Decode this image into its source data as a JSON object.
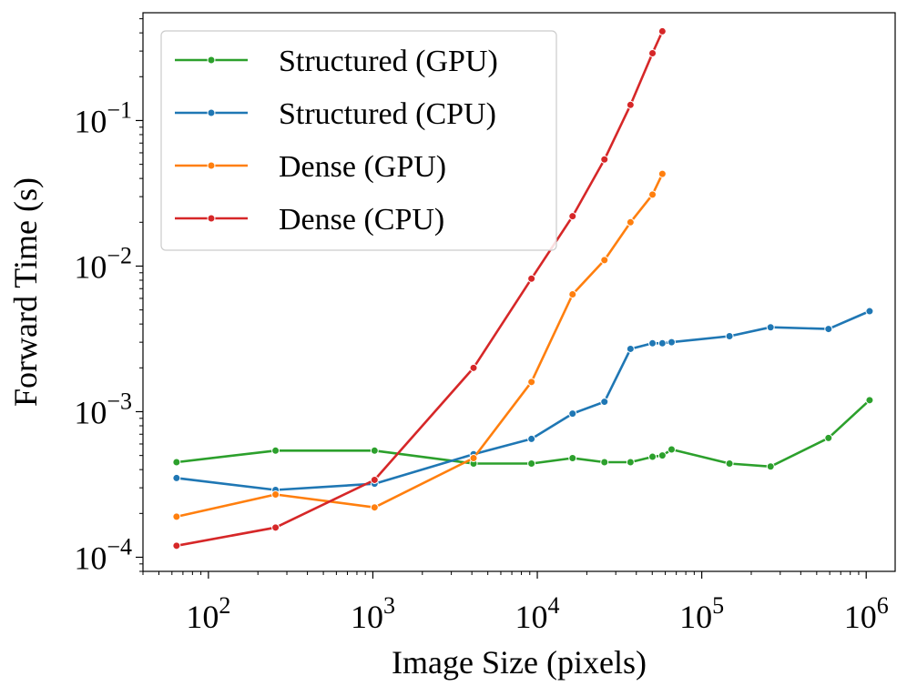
{
  "chart_data": {
    "type": "line",
    "xscale": "log",
    "yscale": "log",
    "xlim": [
      40,
      1500000
    ],
    "ylim": [
      8e-05,
      0.55
    ],
    "xlabel": "Image Size (pixels)",
    "ylabel": "Forward Time (s)",
    "x_ticks": [
      {
        "value": 100,
        "base": "10",
        "exp": "2"
      },
      {
        "value": 1000,
        "base": "10",
        "exp": "3"
      },
      {
        "value": 10000,
        "base": "10",
        "exp": "4"
      },
      {
        "value": 100000,
        "base": "10",
        "exp": "5"
      },
      {
        "value": 1000000,
        "base": "10",
        "exp": "6"
      }
    ],
    "y_ticks": [
      {
        "value": 0.0001,
        "base": "10",
        "exp": "−4"
      },
      {
        "value": 0.001,
        "base": "10",
        "exp": "−3"
      },
      {
        "value": 0.01,
        "base": "10",
        "exp": "−2"
      },
      {
        "value": 0.1,
        "base": "10",
        "exp": "−1"
      }
    ],
    "grid": false,
    "legend_position": "top-left",
    "series": [
      {
        "name": "Structured (GPU)",
        "color": "#2ca02c",
        "x": [
          64,
          256,
          1024,
          4096,
          9216,
          16384,
          25600,
          36864,
          50176,
          57600,
          65536,
          147456,
          262144,
          589824,
          1048576
        ],
        "y": [
          0.00045,
          0.00054,
          0.00054,
          0.00044,
          0.00044,
          0.00048,
          0.00045,
          0.00045,
          0.00049,
          0.0005,
          0.00055,
          0.00044,
          0.00042,
          0.00066,
          0.0012
        ]
      },
      {
        "name": "Structured (CPU)",
        "color": "#1f77b4",
        "x": [
          64,
          256,
          1024,
          4096,
          9216,
          16384,
          25600,
          36864,
          50176,
          57600,
          65536,
          147456,
          262144,
          589824,
          1048576
        ],
        "y": [
          0.00035,
          0.00029,
          0.00032,
          0.00051,
          0.00065,
          0.00097,
          0.00117,
          0.0027,
          0.00295,
          0.00295,
          0.003,
          0.0033,
          0.0038,
          0.0037,
          0.0049
        ]
      },
      {
        "name": "Dense (GPU)",
        "color": "#ff7f0e",
        "x": [
          64,
          256,
          1024,
          4096,
          9216,
          16384,
          25600,
          36864,
          50176,
          57600
        ],
        "y": [
          0.00019,
          0.00027,
          0.00022,
          0.00048,
          0.0016,
          0.0064,
          0.011,
          0.02,
          0.031,
          0.043
        ]
      },
      {
        "name": "Dense (CPU)",
        "color": "#d62728",
        "x": [
          64,
          256,
          1024,
          4096,
          9216,
          16384,
          25600,
          36864,
          50176,
          57600
        ],
        "y": [
          0.00012,
          0.00016,
          0.00034,
          0.002,
          0.0082,
          0.022,
          0.054,
          0.128,
          0.29,
          0.41
        ]
      }
    ]
  }
}
